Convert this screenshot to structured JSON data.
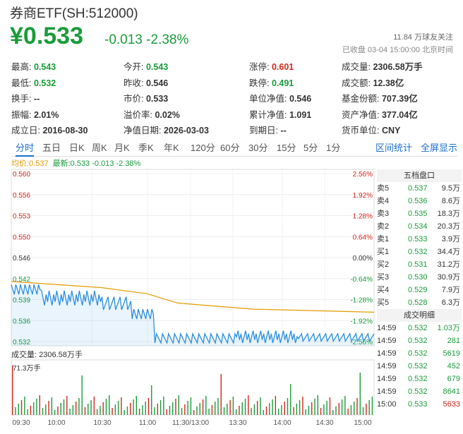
{
  "header": {
    "title": "券商ETF(SH:512000)",
    "price": "¥0.533",
    "change": "-0.013 -2.38%",
    "follow": "11.84 万球友关注",
    "status": "已收盘 03-04 15:00:00 北京时间"
  },
  "stats": [
    [
      {
        "label": "最高:",
        "value": "0.543",
        "color": "green"
      },
      {
        "label": "今开:",
        "value": "0.543",
        "color": "green"
      },
      {
        "label": "涨停:",
        "value": "0.601",
        "color": "red"
      },
      {
        "label": "成交量:",
        "value": "2306.58万手",
        "color": ""
      }
    ],
    [
      {
        "label": "最低:",
        "value": "0.532",
        "color": "green"
      },
      {
        "label": "昨收:",
        "value": "0.546",
        "color": ""
      },
      {
        "label": "跌停:",
        "value": "0.491",
        "color": "green"
      },
      {
        "label": "成交额:",
        "value": "12.38亿",
        "color": ""
      }
    ],
    [
      {
        "label": "换手:",
        "value": "--",
        "color": ""
      },
      {
        "label": "市价:",
        "value": "0.533",
        "color": ""
      },
      {
        "label": "单位净值:",
        "value": "0.546",
        "color": ""
      },
      {
        "label": "基金份额:",
        "value": "707.39亿",
        "color": ""
      }
    ],
    [
      {
        "label": "振幅:",
        "value": "2.01%",
        "color": ""
      },
      {
        "label": "溢价率:",
        "value": "0.02%",
        "color": ""
      },
      {
        "label": "累计净值:",
        "value": "1.091",
        "color": ""
      },
      {
        "label": "资产净值:",
        "value": "377.04亿",
        "color": ""
      }
    ],
    [
      {
        "label": "成立日:",
        "value": "2016-08-30",
        "color": ""
      },
      {
        "label": "净值日期:",
        "value": "2026-03-03",
        "color": ""
      },
      {
        "label": "到期日:",
        "value": "--",
        "color": ""
      },
      {
        "label": "货币单位:",
        "value": "CNY",
        "color": ""
      }
    ]
  ],
  "tabs": [
    "分时",
    "五日",
    "日K",
    "周K",
    "月K",
    "季K",
    "年K",
    "120分",
    "60分",
    "30分",
    "15分",
    "5分",
    "1分"
  ],
  "tab_links": [
    "区间统计",
    "全屏显示"
  ],
  "legend": {
    "avg": "均价:0.537",
    "latest": "最新:0.533 -0.013 -2.38%"
  },
  "axis": {
    "left": [
      "0.560",
      "0.556",
      "0.553",
      "0.550",
      "0.546",
      "0.542",
      "0.539",
      "0.536",
      "0.532"
    ],
    "right": [
      "2.56%",
      "1.92%",
      "1.28%",
      "0.64%",
      "0.00%",
      "-0.64%",
      "-1.28%",
      "-1.92%",
      "-2.56%"
    ],
    "time": [
      "09:30",
      "10:00",
      "10:30",
      "11:00",
      "11:30/13:00",
      "13:30",
      "14:00",
      "14:30",
      "15:00"
    ]
  },
  "volume": {
    "label": "成交量: 2306.58万手",
    "max": "71.3万手"
  },
  "order_book": {
    "title": "五档盘口",
    "rows": [
      {
        "side": "卖5",
        "price": "0.537",
        "vol": "9.5万"
      },
      {
        "side": "卖4",
        "price": "0.536",
        "vol": "8.6万"
      },
      {
        "side": "卖3",
        "price": "0.535",
        "vol": "18.3万"
      },
      {
        "side": "卖2",
        "price": "0.534",
        "vol": "20.3万"
      },
      {
        "side": "卖1",
        "price": "0.533",
        "vol": "3.9万"
      },
      {
        "side": "买1",
        "price": "0.532",
        "vol": "34.4万"
      },
      {
        "side": "买2",
        "price": "0.531",
        "vol": "31.2万"
      },
      {
        "side": "买3",
        "price": "0.530",
        "vol": "30.9万"
      },
      {
        "side": "买4",
        "price": "0.529",
        "vol": "7.9万"
      },
      {
        "side": "买5",
        "price": "0.528",
        "vol": "6.3万"
      }
    ],
    "trades_title": "成交明细",
    "trades": [
      {
        "time": "14:59",
        "price": "0.532",
        "vol": "1.03万"
      },
      {
        "time": "14:59",
        "price": "0.532",
        "vol": "281"
      },
      {
        "time": "14:59",
        "price": "0.532",
        "vol": "5619"
      },
      {
        "time": "14:59",
        "price": "0.532",
        "vol": "452"
      },
      {
        "time": "14:59",
        "price": "0.532",
        "vol": "679"
      },
      {
        "time": "14:59",
        "price": "0.532",
        "vol": "8641"
      },
      {
        "time": "15:00",
        "price": "0.533",
        "vol": "5633"
      }
    ]
  },
  "colors": {
    "green": "#1a9c3a",
    "red": "#d6261c",
    "avg_line": "#e59a00",
    "price_line": "#2b8fe0",
    "accent": "#1a6fd0"
  }
}
